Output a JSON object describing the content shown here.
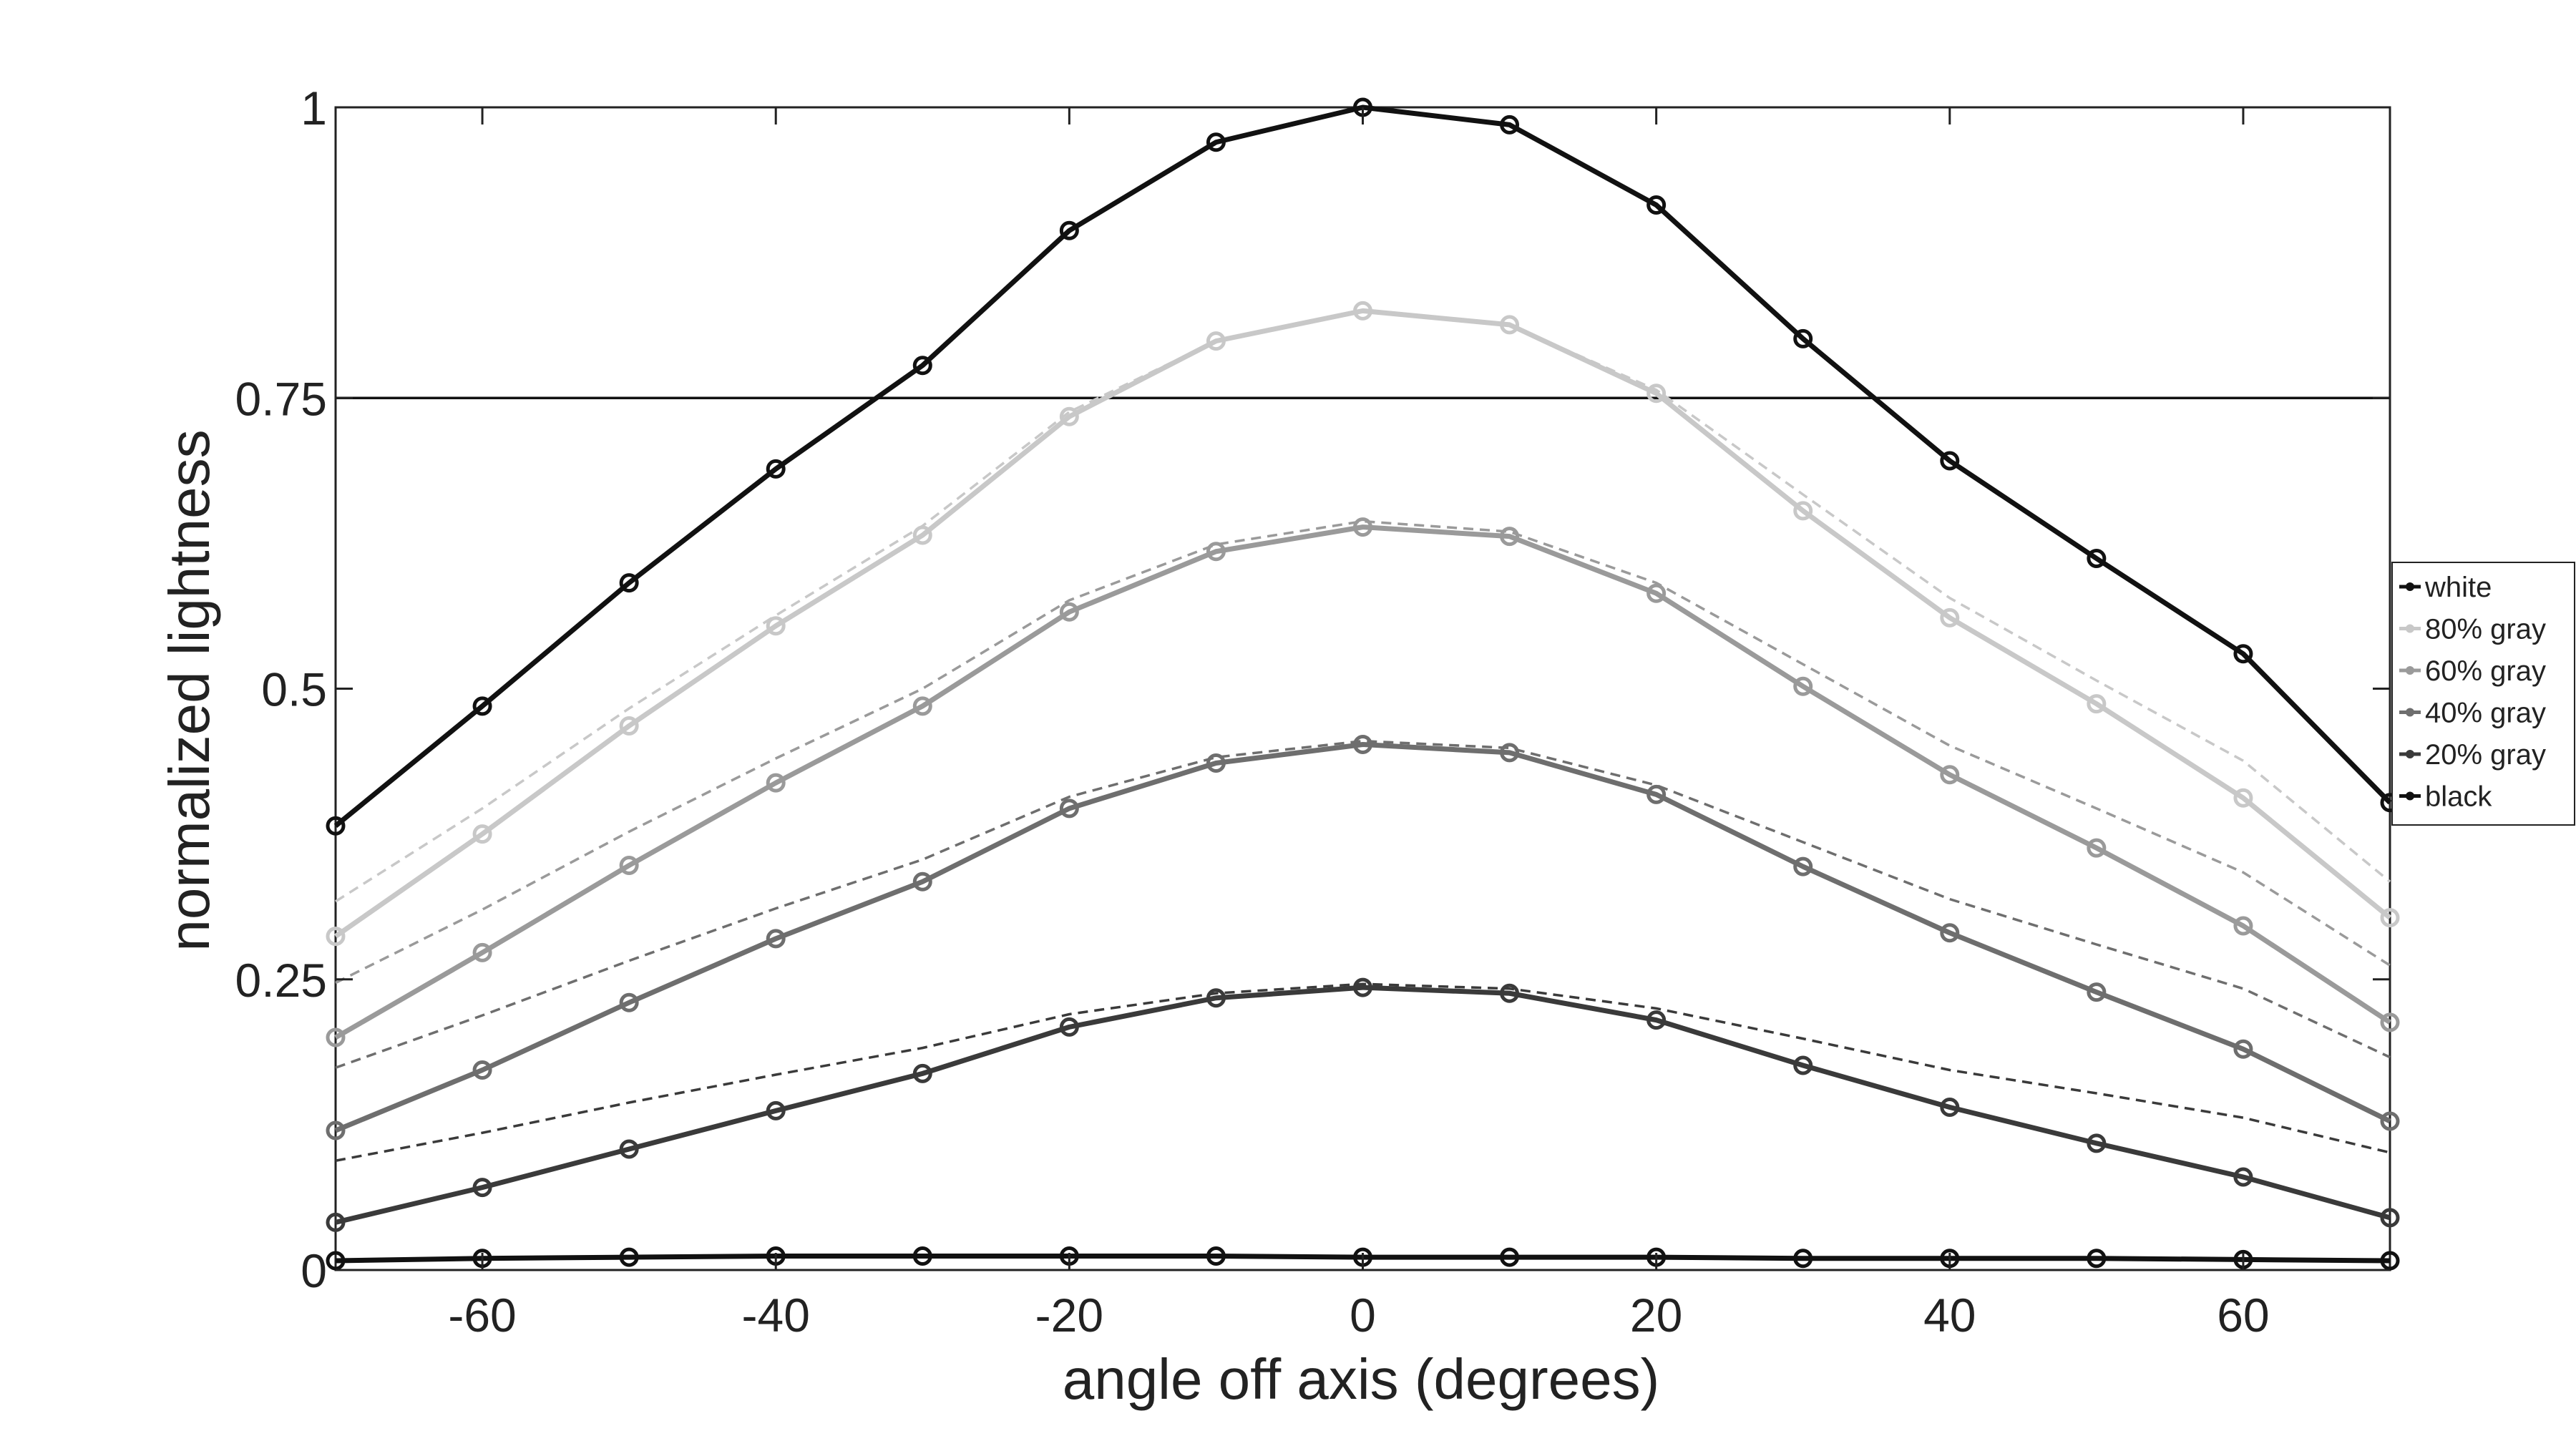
{
  "chart_data": {
    "type": "line",
    "title": "",
    "xlabel": "angle off axis (degrees)",
    "ylabel": "normalized lightness",
    "xlim": [
      -70,
      70
    ],
    "ylim": [
      0,
      1
    ],
    "x_ticks": [
      -60,
      -40,
      -20,
      0,
      20,
      40,
      60
    ],
    "x_tick_labels": [
      "-60",
      "-40",
      "-20",
      "0",
      "20",
      "40",
      "60"
    ],
    "y_ticks": [
      0,
      0.25,
      0.5,
      0.75,
      1
    ],
    "y_tick_labels": [
      "0",
      "0.25",
      "0.5",
      "0.75",
      "1"
    ],
    "reference_line_y": 0.75,
    "grid": false,
    "legend_position": "right",
    "x": [
      -70,
      -60,
      -50,
      -40,
      -30,
      -20,
      -10,
      0,
      10,
      20,
      30,
      40,
      50,
      60,
      70
    ],
    "series": [
      {
        "name": "white",
        "color": "#111111",
        "values": [
          0.382,
          0.485,
          0.591,
          0.689,
          0.778,
          0.894,
          0.97,
          1.0,
          0.985,
          0.916,
          0.801,
          0.696,
          0.612,
          0.53,
          0.402
        ]
      },
      {
        "name": "80% gray",
        "color": "#c8c8c8",
        "values": [
          0.287,
          0.375,
          0.468,
          0.554,
          0.632,
          0.734,
          0.799,
          0.825,
          0.813,
          0.754,
          0.653,
          0.561,
          0.487,
          0.406,
          0.303
        ]
      },
      {
        "name": "60% gray",
        "color": "#9a9a9a",
        "values": [
          0.2,
          0.273,
          0.348,
          0.419,
          0.485,
          0.566,
          0.618,
          0.639,
          0.631,
          0.582,
          0.502,
          0.426,
          0.363,
          0.296,
          0.213
        ]
      },
      {
        "name": "40% gray",
        "color": "#6e6e6e",
        "values": [
          0.12,
          0.172,
          0.23,
          0.285,
          0.334,
          0.397,
          0.436,
          0.452,
          0.445,
          0.409,
          0.347,
          0.29,
          0.239,
          0.19,
          0.128
        ]
      },
      {
        "name": "20% gray",
        "color": "#3a3a3a",
        "values": [
          0.041,
          0.071,
          0.104,
          0.137,
          0.169,
          0.209,
          0.234,
          0.243,
          0.238,
          0.215,
          0.176,
          0.14,
          0.109,
          0.08,
          0.045
        ]
      },
      {
        "name": "black",
        "color": "#111111",
        "values": [
          0.008,
          0.01,
          0.011,
          0.012,
          0.012,
          0.012,
          0.012,
          0.011,
          0.011,
          0.011,
          0.01,
          0.01,
          0.01,
          0.009,
          0.008
        ]
      }
    ],
    "reference_curves": [
      {
        "color": "#c8c8c8",
        "values": [
          0.317,
          0.397,
          0.483,
          0.563,
          0.64,
          0.738,
          0.799,
          0.825,
          0.813,
          0.757,
          0.667,
          0.578,
          0.507,
          0.438,
          0.334
        ]
      },
      {
        "color": "#9a9a9a",
        "values": [
          0.247,
          0.31,
          0.377,
          0.44,
          0.5,
          0.576,
          0.624,
          0.644,
          0.635,
          0.591,
          0.521,
          0.451,
          0.397,
          0.342,
          0.262
        ]
      },
      {
        "color": "#6e6e6e",
        "values": [
          0.174,
          0.219,
          0.266,
          0.311,
          0.353,
          0.407,
          0.441,
          0.455,
          0.449,
          0.417,
          0.368,
          0.319,
          0.28,
          0.242,
          0.183
        ]
      },
      {
        "color": "#3a3a3a",
        "values": [
          0.094,
          0.118,
          0.144,
          0.168,
          0.191,
          0.22,
          0.238,
          0.246,
          0.242,
          0.225,
          0.199,
          0.172,
          0.152,
          0.131,
          0.101
        ]
      }
    ]
  }
}
